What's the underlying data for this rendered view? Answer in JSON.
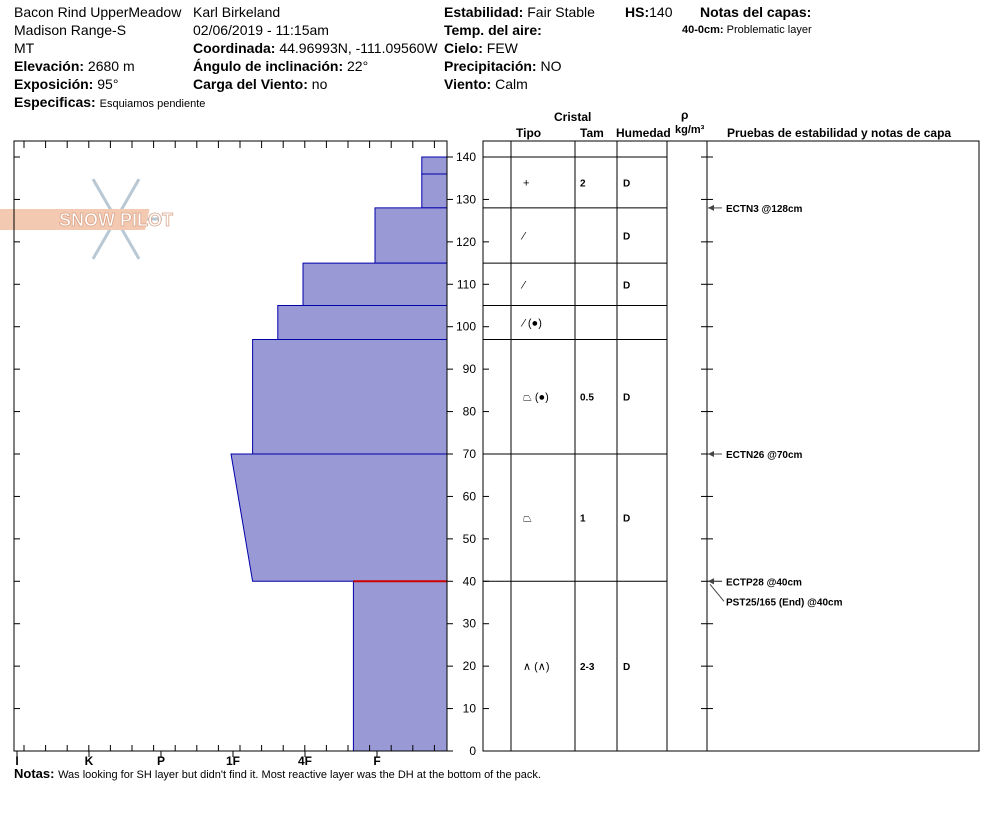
{
  "header": {
    "site": "Bacon Rind UpperMeadow",
    "range": "Madison Range-S",
    "state": "MT",
    "observer": "Karl Birkeland",
    "datetime": "02/06/2019 - 11:15am",
    "elevation_label": "Elevación:",
    "elevation_value": "2680 m",
    "aspect_label": "Exposición:",
    "aspect_value": "95°",
    "specifics_label": "Especificas:",
    "specifics_value": "Esquiamos pendiente",
    "coord_label": "Coordinada:",
    "coord_value": "44.96993N, -111.09560W",
    "slope_label": "Ángulo de inclinación:",
    "slope_value": "22°",
    "windload_label": "Carga del Viento:",
    "windload_value": "no",
    "stability_label": "Estabilidad:",
    "stability_value": "Fair Stable",
    "hs_label": "HS:",
    "hs_value": "140",
    "airtemp_label": "Temp. del aire:",
    "sky_label": "Cielo:",
    "sky_value": "FEW",
    "precip_label": "Precipitación:",
    "precip_value": "NO",
    "wind_label": "Viento:",
    "wind_value": "Calm",
    "layer_notes_label": "Notas del capas:",
    "layer_notes_range": "40-0cm:",
    "layer_notes_text": "Problematic layer"
  },
  "logo": {
    "text": "SNOW PILOT"
  },
  "columns": {
    "crystal": "Cristal",
    "type": "Tipo",
    "size": "Tam",
    "moisture": "Humedad",
    "density_symbol": "ρ",
    "density_unit": "kg/m³",
    "tests": "Pruebas de estabilidad y notas de capa"
  },
  "notes": {
    "label": "Notas:",
    "text": "Was looking for SH layer but didn't find it.  Most reactive layer was the DH at the bottom of the pack."
  },
  "colors": {
    "hardness_fill": "#9999d6",
    "hardness_edge": "#0000aa",
    "critical_layer": "#cc0000"
  },
  "chart_data": {
    "type": "area",
    "title": "",
    "xlabel": "",
    "ylabel": "",
    "y_axis_ticks": [
      0,
      10,
      20,
      30,
      40,
      50,
      60,
      70,
      80,
      90,
      100,
      110,
      120,
      130,
      140
    ],
    "ylim": [
      0,
      140
    ],
    "hardness_categories": [
      "I",
      "K",
      "P",
      "1F",
      "4F",
      "F"
    ],
    "hardness_scale_note": "index from right edge: F=1, 4F=2, 1F=3, P=4, K=5, I=6",
    "hardness_profile": [
      {
        "top": 140,
        "bottom": 136,
        "hardness_index_top": 0.35,
        "hardness_index_bottom": 0.35
      },
      {
        "top": 136,
        "bottom": 128,
        "hardness_index_top": 0.35,
        "hardness_index_bottom": 0.35
      },
      {
        "top": 128,
        "bottom": 115,
        "hardness_index_top": 1.0,
        "hardness_index_bottom": 1.0
      },
      {
        "top": 115,
        "bottom": 105,
        "hardness_index_top": 2.0,
        "hardness_index_bottom": 2.0
      },
      {
        "top": 105,
        "bottom": 97,
        "hardness_index_top": 2.35,
        "hardness_index_bottom": 2.35
      },
      {
        "top": 97,
        "bottom": 70,
        "hardness_index_top": 2.7,
        "hardness_index_bottom": 2.7
      },
      {
        "top": 70,
        "bottom": 40,
        "hardness_index_top": 3.0,
        "hardness_index_bottom": 2.7
      },
      {
        "top": 40,
        "bottom": 0,
        "hardness_index_top": 1.3,
        "hardness_index_bottom": 1.3
      }
    ],
    "critical_layer_depth": 40,
    "layer_boundaries": [
      140,
      128,
      115,
      105,
      97,
      70,
      40,
      0
    ],
    "layers": [
      {
        "top": 140,
        "bottom": 128,
        "type_symbol": "+",
        "size": "2",
        "moisture": "D"
      },
      {
        "top": 128,
        "bottom": 115,
        "type_symbol": "⁄",
        "size": "",
        "moisture": "D"
      },
      {
        "top": 115,
        "bottom": 105,
        "type_symbol": "⁄",
        "size": "",
        "moisture": "D"
      },
      {
        "top": 105,
        "bottom": 97,
        "type_symbol": "⁄ (●)",
        "size": "",
        "moisture": ""
      },
      {
        "top": 97,
        "bottom": 70,
        "type_symbol": "⏢ (●)",
        "size": "0.5",
        "moisture": "D"
      },
      {
        "top": 70,
        "bottom": 40,
        "type_symbol": "⏢",
        "size": "1",
        "moisture": "D"
      },
      {
        "top": 40,
        "bottom": 0,
        "type_symbol": "∧ (∧)",
        "size": "2-3",
        "moisture": "D"
      }
    ],
    "stability_tests": [
      {
        "depth": 128,
        "label": "ECTN3 @128cm"
      },
      {
        "depth": 70,
        "label": "ECTN26 @70cm"
      },
      {
        "depth": 40,
        "label": "ECTP28 @40cm"
      },
      {
        "depth": 40,
        "label": "PST25/165 (End) @40cm",
        "offset": 1
      }
    ]
  }
}
